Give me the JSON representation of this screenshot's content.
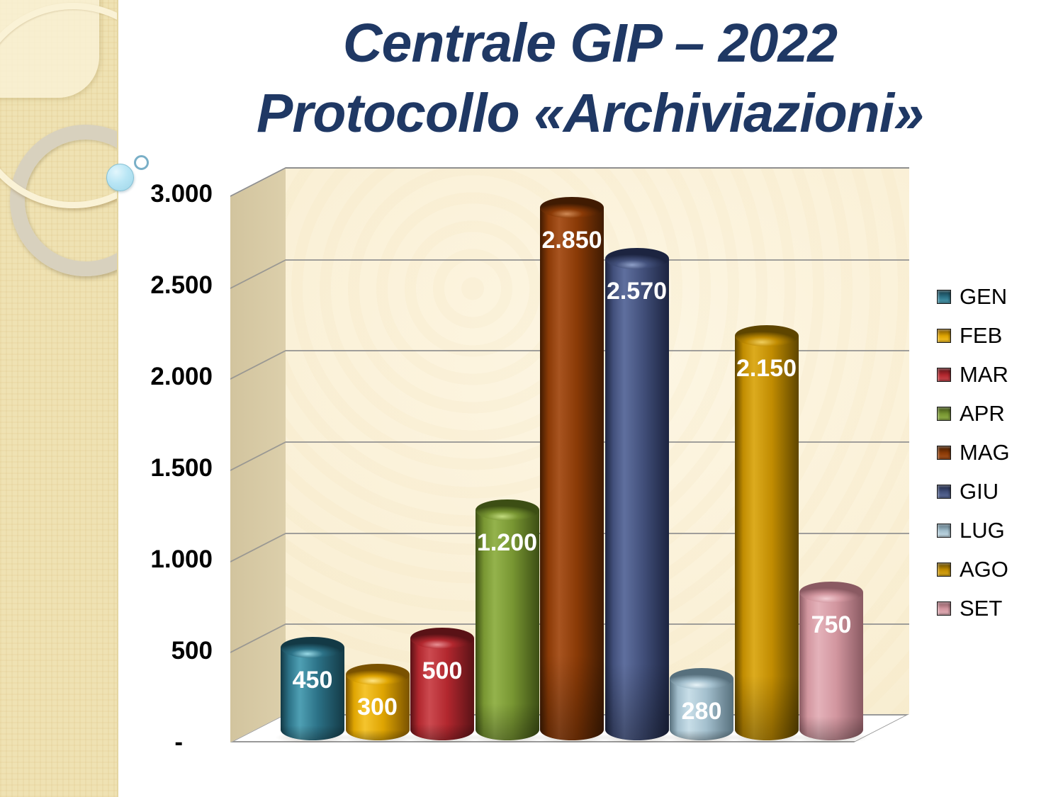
{
  "slide": {
    "title_line1": "Centrale GIP – 2022",
    "title_line2": "Protocollo «Archiviazioni»",
    "title_color": "#1F3864"
  },
  "chart_data": {
    "type": "bar",
    "style": "3d-cylinder",
    "title": "Centrale GIP – 2022 Protocollo «Archiviazioni»",
    "categories": [
      "GEN",
      "FEB",
      "MAR",
      "APR",
      "MAG",
      "GIU",
      "LUG",
      "AGO",
      "SET"
    ],
    "values": [
      450,
      300,
      500,
      1200,
      2850,
      2570,
      280,
      2150,
      750
    ],
    "value_labels": [
      "450",
      "300",
      "500",
      "1.200",
      "2.850",
      "2.570",
      "280",
      "2.150",
      "750"
    ],
    "ylim": [
      0,
      3000
    ],
    "y_tick_step": 500,
    "y_tick_labels": [
      "3.000",
      "2.500",
      "2.000",
      "1.500",
      "1.000",
      "500",
      "-"
    ],
    "grid": true,
    "legend_position": "right",
    "wall_color": "#FAF0D6",
    "side_wall_color": "#D7CAA5",
    "floor_color": "#FFFFFF",
    "gridline_color": "#8F8F8F",
    "colors": [
      {
        "name": "GEN",
        "base": "#2C7287",
        "light": "#4FA0B4",
        "dark": "#133945",
        "spec": "#9ADBE8"
      },
      {
        "name": "FEB",
        "base": "#DFA502",
        "light": "#F5C42E",
        "dark": "#7A5200",
        "spec": "#FFE584"
      },
      {
        "name": "MAR",
        "base": "#B2272E",
        "light": "#CC4A50",
        "dark": "#591216",
        "spec": "#E88F93"
      },
      {
        "name": "APR",
        "base": "#789632",
        "light": "#94B34C",
        "dark": "#3C4E14",
        "spec": "#C2DC7E"
      },
      {
        "name": "MAG",
        "base": "#8A3A06",
        "light": "#A85420",
        "dark": "#401B02",
        "spec": "#D08A56"
      },
      {
        "name": "GIU",
        "base": "#43517C",
        "light": "#5F6F9E",
        "dark": "#1C2440",
        "spec": "#8FA0C8"
      },
      {
        "name": "LUG",
        "base": "#A3BFCD",
        "light": "#C8DEE8",
        "dark": "#57707D",
        "spec": "#E8F4F8"
      },
      {
        "name": "AGO",
        "base": "#C18C01",
        "light": "#DCAB1E",
        "dark": "#5E4500",
        "spec": "#F0CE5E"
      },
      {
        "name": "SET",
        "base": "#D2969F",
        "light": "#E4B2BA",
        "dark": "#8A5A62",
        "spec": "#F2CDD3"
      }
    ]
  }
}
